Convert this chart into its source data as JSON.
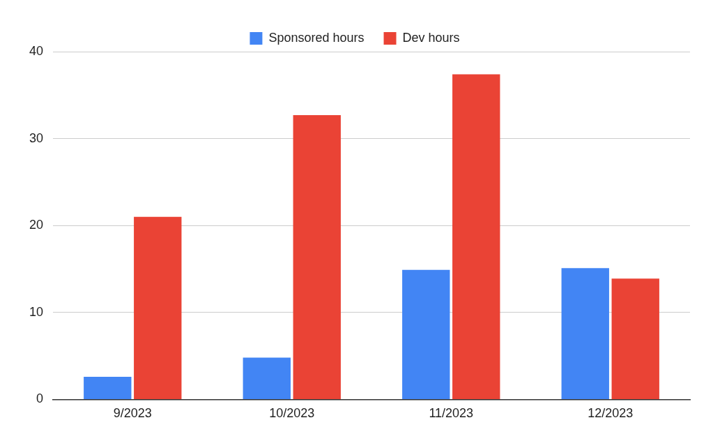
{
  "chart_data": {
    "type": "bar",
    "categories": [
      "9/2023",
      "10/2023",
      "11/2023",
      "12/2023"
    ],
    "series": [
      {
        "name": "Sponsored hours",
        "color": "#4285f4",
        "values": [
          2.6,
          4.8,
          14.9,
          15.1
        ]
      },
      {
        "name": "Dev hours",
        "color": "#ea4335",
        "values": [
          21,
          32.7,
          37.4,
          13.9
        ]
      }
    ],
    "ylim": [
      0,
      40
    ],
    "yticks": [
      0,
      10,
      20,
      30,
      40
    ],
    "grid": "y",
    "legend": "top"
  }
}
